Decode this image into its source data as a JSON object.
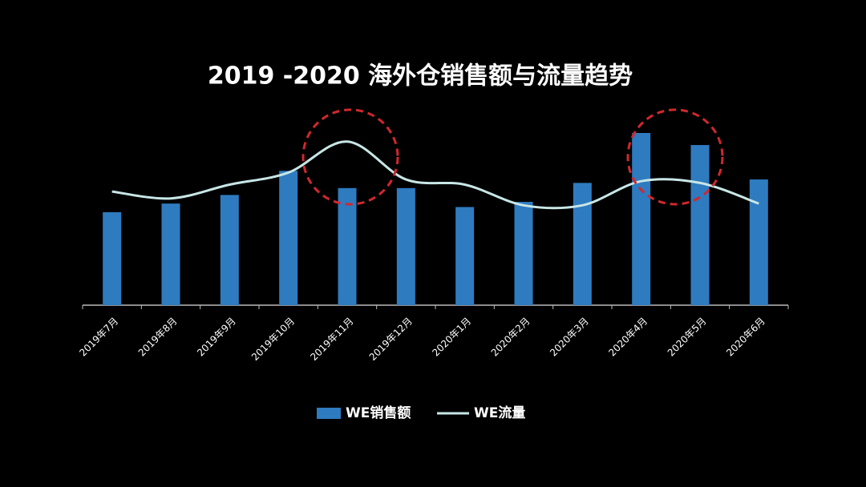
{
  "chart_data": {
    "type": "bar-line",
    "title": "2019 -2020 海外仓销售额与流量趋势",
    "categories": [
      "2019年7月",
      "2019年8月",
      "2019年9月",
      "2019年10月",
      "2019年11月",
      "2019年12月",
      "2020年1月",
      "2020年2月",
      "2020年3月",
      "2020年4月",
      "2020年5月",
      "2020年6月"
    ],
    "series": [
      {
        "name": "WE销售额",
        "type": "bar",
        "color": "#2e7bc0",
        "values": [
          54,
          59,
          64,
          78,
          68,
          68,
          57,
          60,
          71,
          100,
          93,
          73
        ]
      },
      {
        "name": "WE流量",
        "type": "line",
        "color": "#c8e6e6",
        "values": [
          66,
          62,
          70,
          77,
          95,
          73,
          70,
          58,
          58,
          72,
          71,
          59
        ]
      }
    ],
    "ylim": [
      0,
      100
    ]
  }
}
